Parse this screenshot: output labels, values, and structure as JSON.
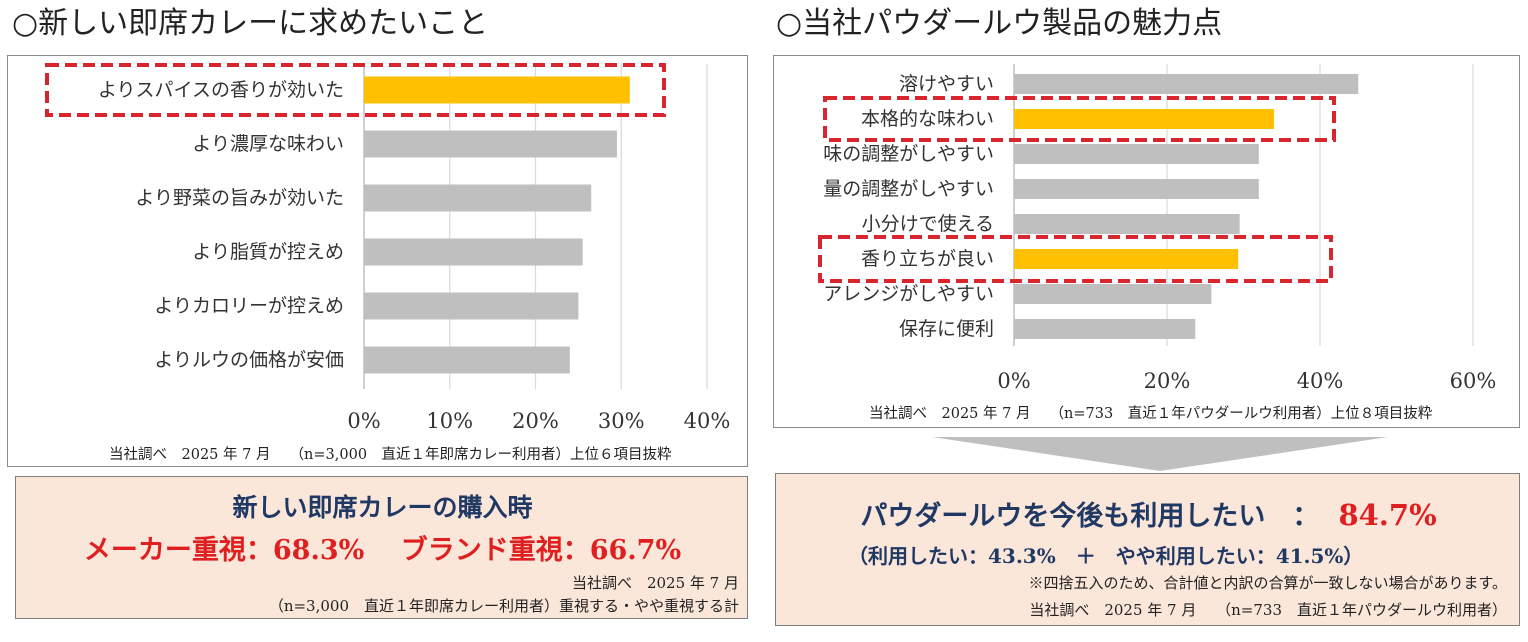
{
  "left_title": "○新しい即席カレーに求めたいこと",
  "right_title": "○当社パウダールウ製品の魅力点",
  "colors": {
    "highlight": "#FFC000",
    "bar": "#BFBFBF",
    "dash": "#D9262E",
    "navy": "#1F3864",
    "red": "#E02020",
    "box_bg": "#FBE6DA"
  },
  "chart_data": [
    {
      "type": "bar",
      "orientation": "horizontal",
      "title": "新しい即席カレーに求めたいこと",
      "categories": [
        "よりスパイスの香りが効いた",
        "より濃厚な味わい",
        "より野菜の旨みが効いた",
        "より脂質が控えめ",
        "よりカロリーが控えめ",
        "よりルウの価格が安価"
      ],
      "values": [
        31,
        29.5,
        26.5,
        25.5,
        25,
        24
      ],
      "highlighted": [
        0
      ],
      "xlim": [
        0,
        40
      ],
      "xticks": [
        "0%",
        "10%",
        "20%",
        "30%",
        "40%"
      ],
      "grid": true,
      "source": "当社調べ　2025 年 7 月　 （n=3,000　直近１年即席カレー利用者）上位６項目抜粋"
    },
    {
      "type": "bar",
      "orientation": "horizontal",
      "title": "当社パウダールウ製品の魅力点",
      "categories": [
        "溶けやすい",
        "本格的な味わい",
        "味の調整がしやすい",
        "量の調整がしやすい",
        "小分けで使える",
        "香り立ちが良い",
        "アレンジがしやすい",
        "保存に便利"
      ],
      "values": [
        45,
        34,
        32,
        32,
        29.5,
        29.3,
        25.8,
        23.7
      ],
      "highlighted": [
        1,
        5
      ],
      "xlim": [
        0,
        60
      ],
      "xticks": [
        "0%",
        "20%",
        "40%",
        "60%"
      ],
      "grid": true,
      "source": "当社調べ　2025 年 7 月　 （n=733　直近１年パウダールウ利用者）上位８項目抜粋"
    }
  ],
  "left_box": {
    "heading": "新しい即席カレーの購入時",
    "stat_line": "メーカー重視：68.3%　 ブランド重視：66.7%",
    "source1": "当社調べ　2025 年 7 月",
    "source2": "（n=3,000　直近１年即席カレー利用者）重視する・やや重視する計"
  },
  "right_box": {
    "heading": "パウダールウを今後も利用したい　：",
    "heading_value": "84.7%",
    "breakdown": "（利用したい：43.3%　＋　やや利用したい：41.5%）",
    "note": "※四捨五入のため、合計値と内訳の合算が一致しない場合があります。",
    "source": "当社調べ　2025 年 7 月　 （n=733　直近１年パウダールウ利用者）"
  }
}
